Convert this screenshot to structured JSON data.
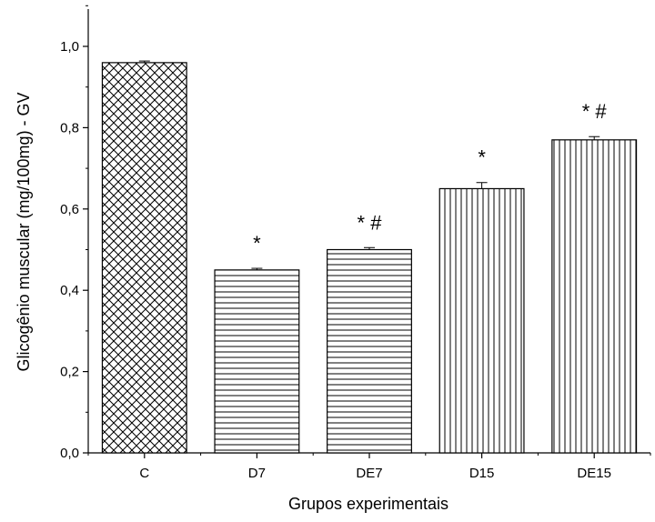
{
  "chart_data": {
    "type": "bar",
    "title": "",
    "xlabel": "Grupos experimentais",
    "ylabel": "Glicogênio muscular (mg/100mg) - GV",
    "ylim": [
      0,
      1.0
    ],
    "yticks": [
      "0,0",
      "0,2",
      "0,4",
      "0,6",
      "0,8",
      "1,0"
    ],
    "categories": [
      "C",
      "D7",
      "DE7",
      "D15",
      "DE15"
    ],
    "values": [
      0.96,
      0.45,
      0.5,
      0.65,
      0.77
    ],
    "error": [
      0.004,
      0.004,
      0.005,
      0.015,
      0.008
    ],
    "patterns": [
      "crosshatch",
      "horizontal",
      "horizontal",
      "vertical",
      "vertical"
    ],
    "annotations": [
      "",
      "*",
      "* #",
      "*",
      "* #"
    ],
    "grid": false,
    "colors": {
      "bar_fill": "#ffffff",
      "stroke": "#000000"
    }
  }
}
